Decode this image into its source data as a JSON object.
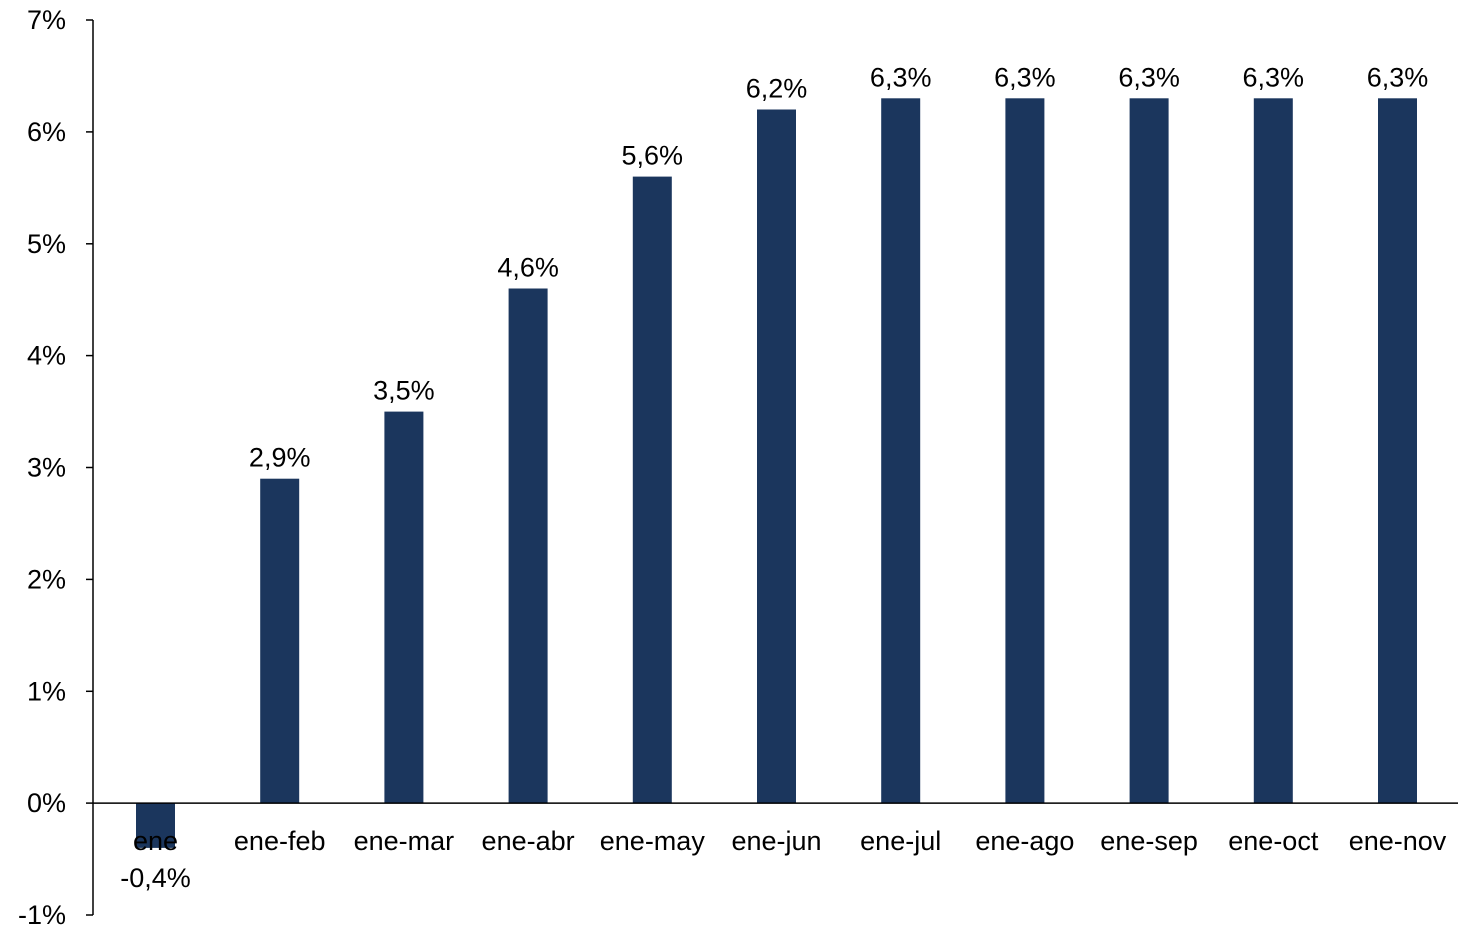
{
  "chart_data": {
    "type": "bar",
    "categories": [
      "ene",
      "ene-feb",
      "ene-mar",
      "ene-abr",
      "ene-may",
      "ene-jun",
      "ene-jul",
      "ene-ago",
      "ene-sep",
      "ene-oct",
      "ene-nov"
    ],
    "values": [
      -0.4,
      2.9,
      3.5,
      4.6,
      5.6,
      6.2,
      6.3,
      6.3,
      6.3,
      6.3,
      6.3
    ],
    "data_labels": [
      "-0,4%",
      "2,9%",
      "3,5%",
      "4,6%",
      "5,6%",
      "6,2%",
      "6,3%",
      "6,3%",
      "6,3%",
      "6,3%",
      "6,3%"
    ],
    "y_ticks": [
      -1,
      0,
      1,
      2,
      3,
      4,
      5,
      6,
      7
    ],
    "y_tick_labels": [
      "-1%",
      "0%",
      "1%",
      "2%",
      "3%",
      "4%",
      "5%",
      "6%",
      "7%"
    ],
    "ylim": [
      -1,
      7
    ],
    "grid": false,
    "legend": "none",
    "bar_color": "#1b365d"
  }
}
